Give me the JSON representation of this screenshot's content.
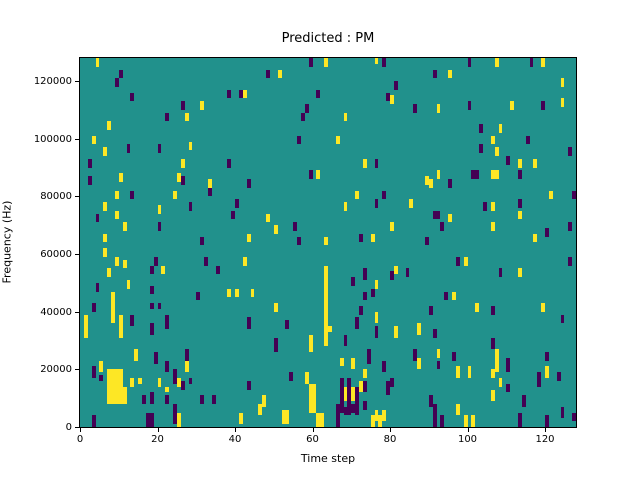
{
  "title": "Predicted : PM",
  "xlabel": "Time step",
  "ylabel": "Frequency (Hz)",
  "colors": {
    "plot_background_teal": "#21918c",
    "cell_yellow": "#fde725",
    "cell_purple": "#440154",
    "spine": "#000000",
    "figure_background": "#ffffff"
  },
  "chart_data": {
    "type": "heatmap",
    "title": "Predicted : PM",
    "xlabel": "Time step",
    "ylabel": "Frequency (Hz)",
    "x_ticks": [
      0,
      20,
      40,
      60,
      80,
      100,
      120
    ],
    "y_ticks": [
      0,
      20000,
      40000,
      60000,
      80000,
      100000,
      120000
    ],
    "x_range": [
      0,
      128
    ],
    "y_range_hz": [
      0,
      128000
    ],
    "grid": {
      "nx": 128,
      "ny": 128,
      "hz_per_bin": 1000
    },
    "legend": "none",
    "value_colors": {
      "background": "teal",
      "low": "purple",
      "high": "yellow"
    },
    "cell_format": "[time_step, freq_bin_bottom, width_steps, height_bins]",
    "purple_cells": [
      [
        10,
        121,
        1,
        3
      ],
      [
        9,
        118,
        1,
        3
      ],
      [
        13,
        113,
        1,
        3
      ],
      [
        38,
        114,
        1,
        3
      ],
      [
        41,
        114,
        1,
        3
      ],
      [
        26,
        110,
        1,
        3
      ],
      [
        22,
        106,
        1,
        3
      ],
      [
        12,
        95,
        1,
        3
      ],
      [
        20,
        95,
        1,
        3
      ],
      [
        2,
        90,
        1,
        3
      ],
      [
        38,
        90,
        1,
        3
      ],
      [
        2,
        84,
        1,
        3
      ],
      [
        26,
        84,
        1,
        3
      ],
      [
        59,
        125,
        1,
        3
      ],
      [
        78,
        125,
        1,
        3
      ],
      [
        48,
        121,
        1,
        3
      ],
      [
        81,
        117,
        1,
        3
      ],
      [
        61,
        114,
        1,
        3
      ],
      [
        79,
        113,
        1,
        3
      ],
      [
        58,
        109,
        1,
        3
      ],
      [
        57,
        106,
        1,
        3
      ],
      [
        56,
        98,
        1,
        3
      ],
      [
        76,
        90,
        1,
        3
      ],
      [
        59,
        86,
        1,
        3
      ],
      [
        100,
        125,
        1,
        3
      ],
      [
        116,
        125,
        1,
        3
      ],
      [
        91,
        121,
        1,
        3
      ],
      [
        86,
        109,
        1,
        3
      ],
      [
        100,
        110,
        1,
        3
      ],
      [
        119,
        110,
        1,
        3
      ],
      [
        103,
        102,
        1,
        3
      ],
      [
        115,
        98,
        1,
        3
      ],
      [
        103,
        95,
        1,
        3
      ],
      [
        126,
        94,
        1,
        3
      ],
      [
        110,
        91,
        1,
        3
      ],
      [
        101,
        86,
        2,
        3
      ],
      [
        113,
        86,
        1,
        3
      ],
      [
        33,
        80,
        1,
        3
      ],
      [
        13,
        79,
        1,
        3
      ],
      [
        4,
        71,
        1,
        3
      ],
      [
        28,
        75,
        1,
        3
      ],
      [
        40,
        76,
        1,
        3
      ],
      [
        39,
        72,
        1,
        3
      ],
      [
        20,
        68,
        1,
        3
      ],
      [
        31,
        63,
        1,
        3
      ],
      [
        19,
        56,
        1,
        3
      ],
      [
        18,
        53,
        1,
        3
      ],
      [
        35,
        53,
        1,
        3
      ],
      [
        32,
        56,
        1,
        3
      ],
      [
        4,
        47,
        1,
        3
      ],
      [
        18,
        46,
        1,
        3
      ],
      [
        30,
        44,
        1,
        3
      ],
      [
        43,
        83,
        1,
        3
      ],
      [
        78,
        79,
        1,
        3
      ],
      [
        76,
        76,
        1,
        3
      ],
      [
        55,
        68,
        1,
        3
      ],
      [
        56,
        63,
        1,
        3
      ],
      [
        72,
        64,
        1,
        3
      ],
      [
        73,
        51,
        1,
        4
      ],
      [
        70,
        49,
        1,
        3
      ],
      [
        80,
        51,
        1,
        3
      ],
      [
        84,
        52,
        1,
        3
      ],
      [
        73,
        44,
        1,
        3
      ],
      [
        75,
        45,
        1,
        3
      ],
      [
        95,
        83,
        1,
        3
      ],
      [
        127,
        79,
        1,
        3
      ],
      [
        104,
        75,
        1,
        3
      ],
      [
        113,
        76,
        1,
        3
      ],
      [
        91,
        72,
        2,
        3
      ],
      [
        93,
        68,
        1,
        3
      ],
      [
        89,
        63,
        1,
        3
      ],
      [
        120,
        66,
        1,
        3
      ],
      [
        126,
        68,
        1,
        3
      ],
      [
        97,
        56,
        1,
        3
      ],
      [
        126,
        56,
        1,
        3
      ],
      [
        108,
        52,
        1,
        3
      ],
      [
        94,
        44,
        1,
        3
      ],
      [
        3,
        40,
        1,
        3
      ],
      [
        18,
        41,
        1,
        2
      ],
      [
        20,
        41,
        1,
        2
      ],
      [
        13,
        35,
        1,
        4
      ],
      [
        18,
        32,
        1,
        4
      ],
      [
        22,
        34,
        1,
        5
      ],
      [
        19,
        22,
        1,
        4
      ],
      [
        27,
        23,
        1,
        4
      ],
      [
        22,
        19,
        1,
        4
      ],
      [
        3,
        17,
        1,
        4
      ],
      [
        5,
        16,
        1,
        2
      ],
      [
        24,
        15,
        1,
        5
      ],
      [
        26,
        13,
        1,
        3
      ],
      [
        28,
        15,
        1,
        2
      ],
      [
        16,
        8,
        1,
        3
      ],
      [
        18,
        8,
        1,
        4
      ],
      [
        22,
        8,
        1,
        3
      ],
      [
        31,
        8,
        1,
        3
      ],
      [
        34,
        8,
        1,
        3
      ],
      [
        3,
        0,
        1,
        4
      ],
      [
        17,
        0,
        2,
        5
      ],
      [
        24,
        1,
        1,
        7
      ],
      [
        43,
        34,
        1,
        4
      ],
      [
        53,
        34,
        1,
        3
      ],
      [
        72,
        39,
        1,
        3
      ],
      [
        71,
        34,
        1,
        4
      ],
      [
        76,
        31,
        1,
        4
      ],
      [
        50,
        26,
        1,
        5
      ],
      [
        68,
        28,
        1,
        4
      ],
      [
        74,
        22,
        1,
        5
      ],
      [
        78,
        19,
        1,
        4
      ],
      [
        79,
        11,
        1,
        5
      ],
      [
        54,
        16,
        1,
        3
      ],
      [
        43,
        13,
        1,
        3
      ],
      [
        80,
        14,
        1,
        3
      ],
      [
        67,
        5,
        1,
        12
      ],
      [
        69,
        4,
        1,
        13
      ],
      [
        71,
        4,
        1,
        10
      ],
      [
        73,
        12,
        1,
        4
      ],
      [
        73,
        6,
        1,
        3
      ],
      [
        68,
        4,
        1,
        3
      ],
      [
        70,
        5,
        2,
        3
      ],
      [
        66,
        0,
        1,
        8
      ],
      [
        90,
        39,
        1,
        3
      ],
      [
        106,
        39,
        1,
        3
      ],
      [
        124,
        36,
        1,
        3
      ],
      [
        91,
        31,
        1,
        3
      ],
      [
        86,
        23,
        1,
        4
      ],
      [
        92,
        20,
        1,
        3
      ],
      [
        96,
        23,
        1,
        3
      ],
      [
        106,
        27,
        1,
        4
      ],
      [
        110,
        19,
        1,
        5
      ],
      [
        120,
        23,
        1,
        3
      ],
      [
        118,
        14,
        1,
        5
      ],
      [
        123,
        16,
        1,
        3
      ],
      [
        110,
        12,
        1,
        3
      ],
      [
        114,
        7,
        1,
        4
      ],
      [
        90,
        7,
        1,
        4
      ],
      [
        91,
        0,
        1,
        8
      ],
      [
        93,
        0,
        1,
        4
      ],
      [
        113,
        0,
        1,
        5
      ],
      [
        120,
        0,
        1,
        4
      ],
      [
        124,
        3,
        1,
        4
      ],
      [
        127,
        2,
        1,
        3
      ]
    ],
    "yellow_cells": [
      [
        4,
        125,
        1,
        3
      ],
      [
        31,
        110,
        1,
        3
      ],
      [
        27,
        106,
        1,
        3
      ],
      [
        7,
        103,
        1,
        3
      ],
      [
        3,
        98,
        1,
        3
      ],
      [
        6,
        94,
        1,
        3
      ],
      [
        28,
        96,
        1,
        3
      ],
      [
        26,
        90,
        1,
        3
      ],
      [
        10,
        85,
        1,
        3
      ],
      [
        25,
        85,
        1,
        3
      ],
      [
        42,
        114,
        1,
        3
      ],
      [
        63,
        125,
        1,
        3
      ],
      [
        76,
        126,
        1,
        2
      ],
      [
        51,
        121,
        1,
        3
      ],
      [
        68,
        106,
        1,
        3
      ],
      [
        66,
        98,
        1,
        3
      ],
      [
        73,
        90,
        1,
        3
      ],
      [
        61,
        86,
        1,
        3
      ],
      [
        80,
        112,
        1,
        3
      ],
      [
        107,
        125,
        1,
        3
      ],
      [
        119,
        125,
        1,
        3
      ],
      [
        95,
        121,
        1,
        3
      ],
      [
        124,
        118,
        1,
        3
      ],
      [
        92,
        109,
        1,
        3
      ],
      [
        111,
        110,
        1,
        3
      ],
      [
        124,
        111,
        1,
        3
      ],
      [
        108,
        102,
        1,
        3
      ],
      [
        106,
        98,
        1,
        3
      ],
      [
        107,
        94,
        1,
        3
      ],
      [
        113,
        90,
        1,
        3
      ],
      [
        117,
        90,
        1,
        3
      ],
      [
        106,
        86,
        2,
        3
      ],
      [
        92,
        86,
        1,
        3
      ],
      [
        89,
        84,
        1,
        3
      ],
      [
        33,
        83,
        1,
        3
      ],
      [
        9,
        79,
        1,
        3
      ],
      [
        24,
        79,
        1,
        3
      ],
      [
        6,
        75,
        1,
        3
      ],
      [
        9,
        72,
        1,
        3
      ],
      [
        20,
        74,
        1,
        3
      ],
      [
        11,
        68,
        1,
        3
      ],
      [
        6,
        64,
        1,
        3
      ],
      [
        6,
        59,
        1,
        3
      ],
      [
        11,
        55,
        1,
        3
      ],
      [
        9,
        56,
        1,
        3
      ],
      [
        21,
        53,
        1,
        3
      ],
      [
        7,
        52,
        1,
        3
      ],
      [
        42,
        56,
        1,
        3
      ],
      [
        12,
        48,
        1,
        3
      ],
      [
        8,
        44,
        1,
        3
      ],
      [
        38,
        45,
        1,
        3
      ],
      [
        40,
        45,
        1,
        3
      ],
      [
        71,
        79,
        1,
        3
      ],
      [
        68,
        75,
        1,
        3
      ],
      [
        85,
        76,
        1,
        3
      ],
      [
        48,
        71,
        1,
        3
      ],
      [
        50,
        67,
        1,
        3
      ],
      [
        43,
        64,
        1,
        3
      ],
      [
        63,
        63,
        1,
        3
      ],
      [
        75,
        64,
        1,
        3
      ],
      [
        80,
        68,
        1,
        3
      ],
      [
        63,
        43,
        1,
        13
      ],
      [
        76,
        48,
        1,
        3
      ],
      [
        81,
        53,
        1,
        3
      ],
      [
        44,
        45,
        1,
        3
      ],
      [
        90,
        83,
        1,
        3
      ],
      [
        121,
        79,
        1,
        3
      ],
      [
        106,
        75,
        1,
        3
      ],
      [
        113,
        72,
        1,
        3
      ],
      [
        95,
        71,
        1,
        3
      ],
      [
        106,
        68,
        1,
        3
      ],
      [
        117,
        64,
        1,
        3
      ],
      [
        99,
        56,
        1,
        3
      ],
      [
        113,
        52,
        1,
        3
      ],
      [
        96,
        44,
        1,
        3
      ],
      [
        8,
        36,
        1,
        9
      ],
      [
        1,
        31,
        1,
        8
      ],
      [
        10,
        31,
        1,
        8
      ],
      [
        14,
        23,
        1,
        4
      ],
      [
        27,
        19,
        1,
        4
      ],
      [
        5,
        19,
        1,
        4
      ],
      [
        7,
        14,
        4,
        6
      ],
      [
        7,
        8,
        5,
        6
      ],
      [
        13,
        14,
        1,
        3
      ],
      [
        15,
        15,
        1,
        2
      ],
      [
        20,
        14,
        1,
        3
      ],
      [
        22,
        12,
        1,
        2
      ],
      [
        25,
        14,
        1,
        3
      ],
      [
        25,
        0,
        1,
        5
      ],
      [
        41,
        1,
        1,
        4
      ],
      [
        46,
        4,
        1,
        4
      ],
      [
        47,
        7,
        1,
        4
      ],
      [
        52,
        1,
        2,
        5
      ],
      [
        50,
        40,
        1,
        3
      ],
      [
        63,
        36,
        1,
        7
      ],
      [
        63,
        28,
        1,
        8
      ],
      [
        59,
        26,
        1,
        6
      ],
      [
        64,
        33,
        1,
        2
      ],
      [
        67,
        21,
        1,
        3
      ],
      [
        70,
        20,
        1,
        4
      ],
      [
        73,
        17,
        1,
        3
      ],
      [
        76,
        36,
        1,
        4
      ],
      [
        81,
        31,
        1,
        4
      ],
      [
        76,
        2,
        1,
        4
      ],
      [
        78,
        2,
        1,
        4
      ],
      [
        68,
        9,
        1,
        5
      ],
      [
        70,
        9,
        1,
        5
      ],
      [
        72,
        12,
        1,
        4
      ],
      [
        58,
        15,
        1,
        4
      ],
      [
        59,
        5,
        2,
        10
      ],
      [
        61,
        0,
        2,
        5
      ],
      [
        75,
        0,
        1,
        4
      ],
      [
        77,
        0,
        1,
        4
      ],
      [
        102,
        40,
        1,
        3
      ],
      [
        119,
        40,
        1,
        3
      ],
      [
        87,
        32,
        1,
        4
      ],
      [
        87,
        20,
        1,
        4
      ],
      [
        92,
        24,
        1,
        3
      ],
      [
        107,
        19,
        1,
        8
      ],
      [
        97,
        17,
        1,
        4
      ],
      [
        100,
        17,
        1,
        4
      ],
      [
        106,
        17,
        1,
        3
      ],
      [
        108,
        14,
        1,
        3
      ],
      [
        120,
        17,
        1,
        4
      ],
      [
        106,
        9,
        1,
        4
      ],
      [
        97,
        4,
        1,
        4
      ],
      [
        99,
        0,
        1,
        4
      ],
      [
        101,
        0,
        1,
        4
      ]
    ]
  }
}
